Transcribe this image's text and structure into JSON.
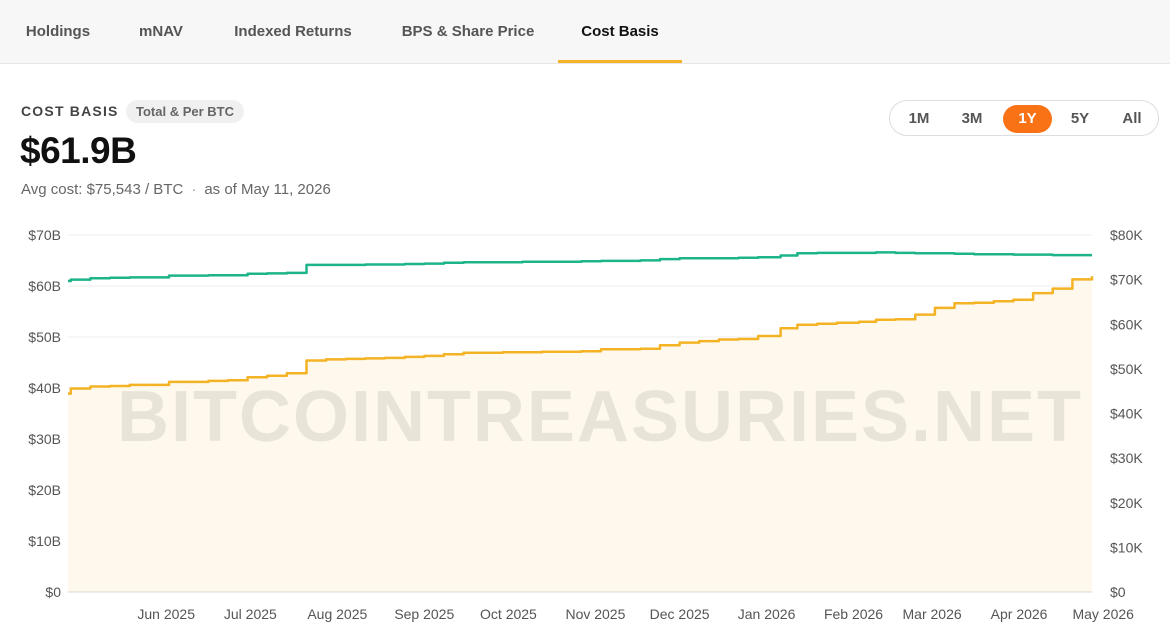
{
  "tabs": [
    {
      "label": "Holdings",
      "active": false
    },
    {
      "label": "mNAV",
      "active": false
    },
    {
      "label": "Indexed Returns",
      "active": false
    },
    {
      "label": "BPS & Share Price",
      "active": false
    },
    {
      "label": "Cost Basis",
      "active": true
    }
  ],
  "header": {
    "section_label": "COST BASIS",
    "pill_label": "Total & Per BTC",
    "big_value": "$61.9B",
    "avg_cost": "Avg cost: $75,543 / BTC",
    "separator": "·",
    "as_of": "as of May 11, 2026"
  },
  "range_buttons": [
    {
      "label": "1M",
      "active": false
    },
    {
      "label": "3M",
      "active": false
    },
    {
      "label": "1Y",
      "active": true
    },
    {
      "label": "5Y",
      "active": false
    },
    {
      "label": "All",
      "active": false
    }
  ],
  "watermark": "BITCOINTREASURIES.NET",
  "colors": {
    "total_line": "#f4b324",
    "total_fill": "#fef9ec",
    "per_btc_line": "#1db48a",
    "active_range": "#f97316",
    "tab_underline": "#f4b324"
  },
  "chart_data": {
    "type": "line",
    "x_tick_labels": [
      "Jun 2025",
      "Jul 2025",
      "Aug 2025",
      "Sep 2025",
      "Oct 2025",
      "Nov 2025",
      "Dec 2025",
      "Jan 2026",
      "Feb 2026",
      "Mar 2026",
      "Apr 2026",
      "May 2026"
    ],
    "y_left": {
      "range": [
        0,
        70
      ],
      "unit": "B",
      "tick_labels": [
        "$0",
        "$10B",
        "$20B",
        "$30B",
        "$40B",
        "$50B",
        "$60B",
        "$70B"
      ]
    },
    "y_right": {
      "range": [
        0,
        80
      ],
      "unit": "K",
      "tick_labels": [
        "$0",
        "$10K",
        "$20K",
        "$30K",
        "$40K",
        "$50K",
        "$60K",
        "$70K",
        "$80K"
      ]
    },
    "grid": true,
    "series": [
      {
        "axis": "left",
        "unit": "B",
        "points": [
          [
            "2025-05-11",
            38.9
          ],
          [
            "2025-05-12",
            39.9
          ],
          [
            "2025-05-19",
            40.3
          ],
          [
            "2025-05-26",
            40.4
          ],
          [
            "2025-06-02",
            40.6
          ],
          [
            "2025-06-09",
            40.6
          ],
          [
            "2025-06-16",
            41.2
          ],
          [
            "2025-06-30",
            41.4
          ],
          [
            "2025-07-07",
            41.5
          ],
          [
            "2025-07-14",
            42.1
          ],
          [
            "2025-07-21",
            42.4
          ],
          [
            "2025-07-28",
            42.9
          ],
          [
            "2025-08-04",
            45.4
          ],
          [
            "2025-08-11",
            45.6
          ],
          [
            "2025-08-18",
            45.7
          ],
          [
            "2025-08-25",
            45.8
          ],
          [
            "2025-09-01",
            45.9
          ],
          [
            "2025-09-08",
            46.1
          ],
          [
            "2025-09-15",
            46.3
          ],
          [
            "2025-09-22",
            46.6
          ],
          [
            "2025-09-29",
            46.9
          ],
          [
            "2025-10-06",
            46.9
          ],
          [
            "2025-10-13",
            47.0
          ],
          [
            "2025-10-20",
            47.0
          ],
          [
            "2025-10-27",
            47.1
          ],
          [
            "2025-11-03",
            47.1
          ],
          [
            "2025-11-10",
            47.2
          ],
          [
            "2025-11-17",
            47.6
          ],
          [
            "2025-12-01",
            47.7
          ],
          [
            "2025-12-08",
            48.4
          ],
          [
            "2025-12-15",
            48.9
          ],
          [
            "2025-12-22",
            49.2
          ],
          [
            "2025-12-29",
            49.5
          ],
          [
            "2026-01-05",
            49.6
          ],
          [
            "2026-01-12",
            50.2
          ],
          [
            "2026-01-20",
            51.7
          ],
          [
            "2026-01-26",
            52.4
          ],
          [
            "2026-02-02",
            52.6
          ],
          [
            "2026-02-09",
            52.8
          ],
          [
            "2026-02-17",
            53.0
          ],
          [
            "2026-02-23",
            53.4
          ],
          [
            "2026-03-02",
            53.5
          ],
          [
            "2026-03-09",
            54.4
          ],
          [
            "2026-03-16",
            55.7
          ],
          [
            "2026-03-23",
            56.6
          ],
          [
            "2026-03-30",
            56.7
          ],
          [
            "2026-04-06",
            57.0
          ],
          [
            "2026-04-13",
            57.3
          ],
          [
            "2026-04-20",
            58.6
          ],
          [
            "2026-04-27",
            59.5
          ],
          [
            "2026-05-04",
            61.3
          ],
          [
            "2026-05-11",
            61.9
          ]
        ]
      },
      {
        "axis": "right",
        "unit": "K",
        "points": [
          [
            "2025-05-11",
            69.7
          ],
          [
            "2025-05-12",
            70.0
          ],
          [
            "2025-05-19",
            70.3
          ],
          [
            "2025-05-26",
            70.4
          ],
          [
            "2025-06-02",
            70.5
          ],
          [
            "2025-06-09",
            70.5
          ],
          [
            "2025-06-16",
            70.9
          ],
          [
            "2025-06-30",
            71.0
          ],
          [
            "2025-07-07",
            71.0
          ],
          [
            "2025-07-14",
            71.3
          ],
          [
            "2025-07-21",
            71.4
          ],
          [
            "2025-07-28",
            71.5
          ],
          [
            "2025-08-04",
            73.3
          ],
          [
            "2025-08-11",
            73.3
          ],
          [
            "2025-08-18",
            73.3
          ],
          [
            "2025-08-25",
            73.4
          ],
          [
            "2025-09-01",
            73.4
          ],
          [
            "2025-09-08",
            73.5
          ],
          [
            "2025-09-15",
            73.6
          ],
          [
            "2025-09-22",
            73.8
          ],
          [
            "2025-09-29",
            73.9
          ],
          [
            "2025-10-06",
            73.9
          ],
          [
            "2025-10-13",
            73.9
          ],
          [
            "2025-10-20",
            74.0
          ],
          [
            "2025-10-27",
            74.0
          ],
          [
            "2025-11-03",
            74.0
          ],
          [
            "2025-11-10",
            74.1
          ],
          [
            "2025-11-17",
            74.2
          ],
          [
            "2025-12-01",
            74.3
          ],
          [
            "2025-12-08",
            74.6
          ],
          [
            "2025-12-15",
            74.8
          ],
          [
            "2025-12-22",
            74.8
          ],
          [
            "2025-12-29",
            74.8
          ],
          [
            "2026-01-05",
            74.9
          ],
          [
            "2026-01-12",
            75.0
          ],
          [
            "2026-01-20",
            75.4
          ],
          [
            "2026-01-26",
            75.9
          ],
          [
            "2026-02-02",
            76.0
          ],
          [
            "2026-02-09",
            76.0
          ],
          [
            "2026-02-17",
            76.0
          ],
          [
            "2026-02-23",
            76.1
          ],
          [
            "2026-03-02",
            76.0
          ],
          [
            "2026-03-09",
            75.9
          ],
          [
            "2026-03-16",
            75.9
          ],
          [
            "2026-03-23",
            75.8
          ],
          [
            "2026-03-30",
            75.7
          ],
          [
            "2026-04-06",
            75.7
          ],
          [
            "2026-04-13",
            75.6
          ],
          [
            "2026-04-20",
            75.6
          ],
          [
            "2026-04-27",
            75.5
          ],
          [
            "2026-05-04",
            75.5
          ],
          [
            "2026-05-11",
            75.5
          ]
        ]
      }
    ]
  }
}
